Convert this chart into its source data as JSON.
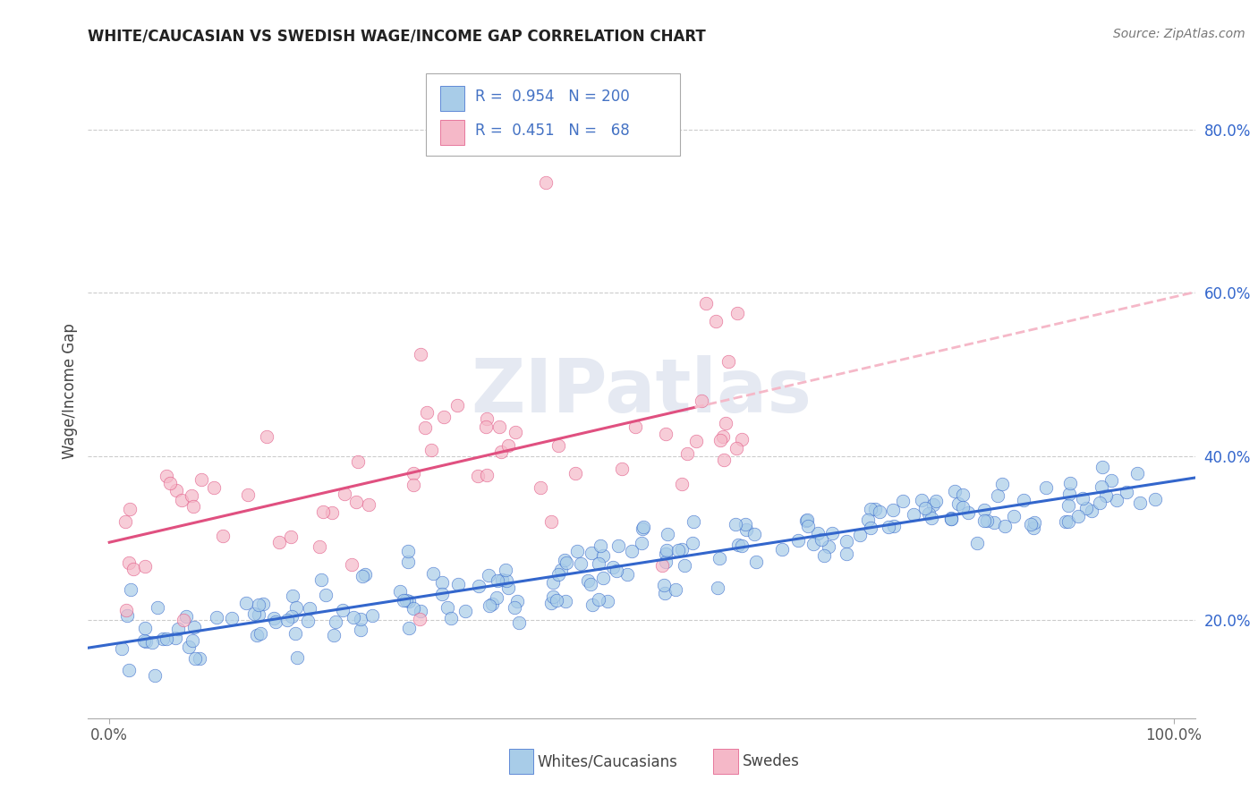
{
  "title": "WHITE/CAUCASIAN VS SWEDISH WAGE/INCOME GAP CORRELATION CHART",
  "source": "Source: ZipAtlas.com",
  "ylabel": "Wage/Income Gap",
  "blue_R": 0.954,
  "blue_N": 200,
  "pink_R": 0.451,
  "pink_N": 68,
  "blue_color": "#a8cce8",
  "blue_line_color": "#3366cc",
  "pink_color": "#f5b8c8",
  "pink_line_color": "#e05080",
  "background_color": "#ffffff",
  "grid_color": "#cccccc",
  "title_color": "#222222",
  "legend_text_color": "#4472c4",
  "watermark": "ZIPatlas",
  "xlim": [
    -0.02,
    1.02
  ],
  "ylim": [
    0.08,
    0.88
  ],
  "yticks": [
    0.2,
    0.4,
    0.6,
    0.8
  ],
  "xticks": [
    0.0,
    1.0
  ],
  "blue_intercept": 0.17,
  "blue_slope": 0.2,
  "pink_intercept": 0.295,
  "pink_slope": 0.3
}
